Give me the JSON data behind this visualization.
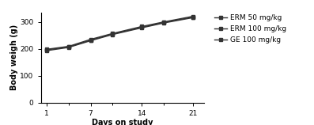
{
  "x": [
    1,
    4,
    7,
    10,
    14,
    17,
    21
  ],
  "erm50": [
    196,
    207,
    232,
    255,
    280,
    298,
    318
  ],
  "erm100": [
    198,
    209,
    235,
    257,
    283,
    300,
    321
  ],
  "ge100": [
    193,
    205,
    230,
    253,
    278,
    296,
    316
  ],
  "xticks": [
    1,
    7,
    14,
    21
  ],
  "yticks": [
    0,
    100,
    200,
    300
  ],
  "xlabel": "Days on study",
  "ylabel": "Body weigh (g)",
  "legend": [
    "ERM 50 mg/kg",
    "ERM 100 mg/kg",
    "GE 100 mg/kg"
  ],
  "line_color": "#333333",
  "bg_color": "#ffffff",
  "ylim": [
    0,
    335
  ],
  "xlim": [
    0.2,
    22.5
  ]
}
